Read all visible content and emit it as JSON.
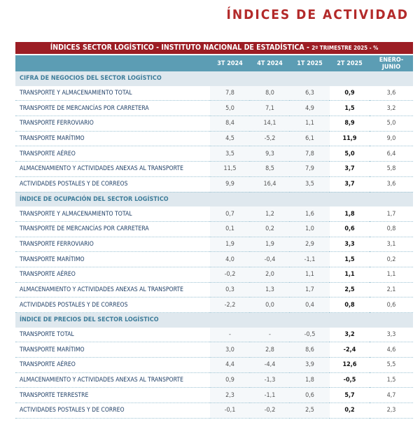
{
  "header": {
    "title": "ÍNDICES DE ACTIVIDAD"
  },
  "table": {
    "banner": "ÍNDICES SECTOR LOGÍSTICO - INSTITUTO NACIONAL DE ESTADÍSTICA -",
    "banner_suffix": "2º TRIMESTRE 2025 - %",
    "columns": [
      "3T 2024",
      "4T 2024",
      "1T 2025",
      "2T 2025",
      "ENERO-JUNIO"
    ],
    "sections": [
      {
        "title": "CIFRA DE NEGOCIOS DEL SECTOR LOGÍSTICO",
        "rows": [
          [
            "TRANSPORTE Y ALMACENAMIENTO TOTAL",
            "7,8",
            "8,0",
            "6,3",
            "0,9",
            "3,6"
          ],
          [
            "TRANSPORTE DE MERCANCÍAS POR CARRETERA",
            "5,0",
            "7,1",
            "4,9",
            "1,5",
            "3,2"
          ],
          [
            "TRANSPORTE FERROVIARIO",
            "8,4",
            "14,1",
            "1,1",
            "8,9",
            "5,0"
          ],
          [
            "TRANSPORTE MARÍTIMO",
            "4,5",
            "-5,2",
            "6,1",
            "11,9",
            "9,0"
          ],
          [
            "TRANSPORTE AÉREO",
            "3,5",
            "9,3",
            "7,8",
            "5,0",
            "6,4"
          ],
          [
            "ALMACENAMIENTO Y ACTIVIDADES ANEXAS AL TRANSPORTE",
            "11,5",
            "8,5",
            "7,9",
            "3,7",
            "5,8"
          ],
          [
            "ACTIVIDADES POSTALES Y DE CORREOS",
            "9,9",
            "16,4",
            "3,5",
            "3,7",
            "3,6"
          ]
        ]
      },
      {
        "title": "ÍNDICE DE OCUPACIÓN DEL SECTOR LOGÍSTICO",
        "rows": [
          [
            "TRANSPORTE Y ALMACENAMIENTO TOTAL",
            "0,7",
            "1,2",
            "1,6",
            "1,8",
            "1,7"
          ],
          [
            "TRANSPORTE DE MERCANCÍAS POR CARRETERA",
            "0,1",
            "0,2",
            "1,0",
            "0,6",
            "0,8"
          ],
          [
            "TRANSPORTE FERROVIARIO",
            "1,9",
            "1,9",
            "2,9",
            "3,3",
            "3,1"
          ],
          [
            "TRANSPORTE MARÍTIMO",
            "4,0",
            "-0,4",
            "-1,1",
            "1,5",
            "0,2"
          ],
          [
            "TRANSPORTE AÉREO",
            "-0,2",
            "2,0",
            "1,1",
            "1,1",
            "1,1"
          ],
          [
            "ALMACENAMIENTO Y ACTIVIDADES ANEXAS AL TRANSPORTE",
            "0,3",
            "1,3",
            "1,7",
            "2,5",
            "2,1"
          ],
          [
            "ACTIVIDADES POSTALES Y DE CORREOS",
            "-2,2",
            "0,0",
            "0,4",
            "0,8",
            "0,6"
          ]
        ]
      },
      {
        "title": "ÍNDICE DE PRECIOS DEL SECTOR LOGÍSTICO",
        "rows": [
          [
            "TRANSPORTE TOTAL",
            "-",
            "-",
            "-0,5",
            "3,2",
            "3,3"
          ],
          [
            "TRANSPORTE MARÍTIMO",
            "3,0",
            "2,8",
            "8,6",
            "-2,4",
            "4,6"
          ],
          [
            "TRANSPORTE AÉREO",
            "4,4",
            "-4,4",
            "3,9",
            "12,6",
            "5,5"
          ],
          [
            "ALMACENAMIENTO Y ACTIVIDADES ANEXAS AL TRANSPORTE",
            "0,9",
            "-1,3",
            "1,8",
            "-0,5",
            "1,5"
          ],
          [
            "TRANSPORTE TERRESTRE",
            "2,3",
            "-1,1",
            "0,6",
            "5,7",
            "4,7"
          ],
          [
            "ACTIVIDADES POSTALES Y DE CORREO",
            "-0,1",
            "-0,2",
            "2,5",
            "0,2",
            "2,3"
          ]
        ]
      }
    ]
  }
}
